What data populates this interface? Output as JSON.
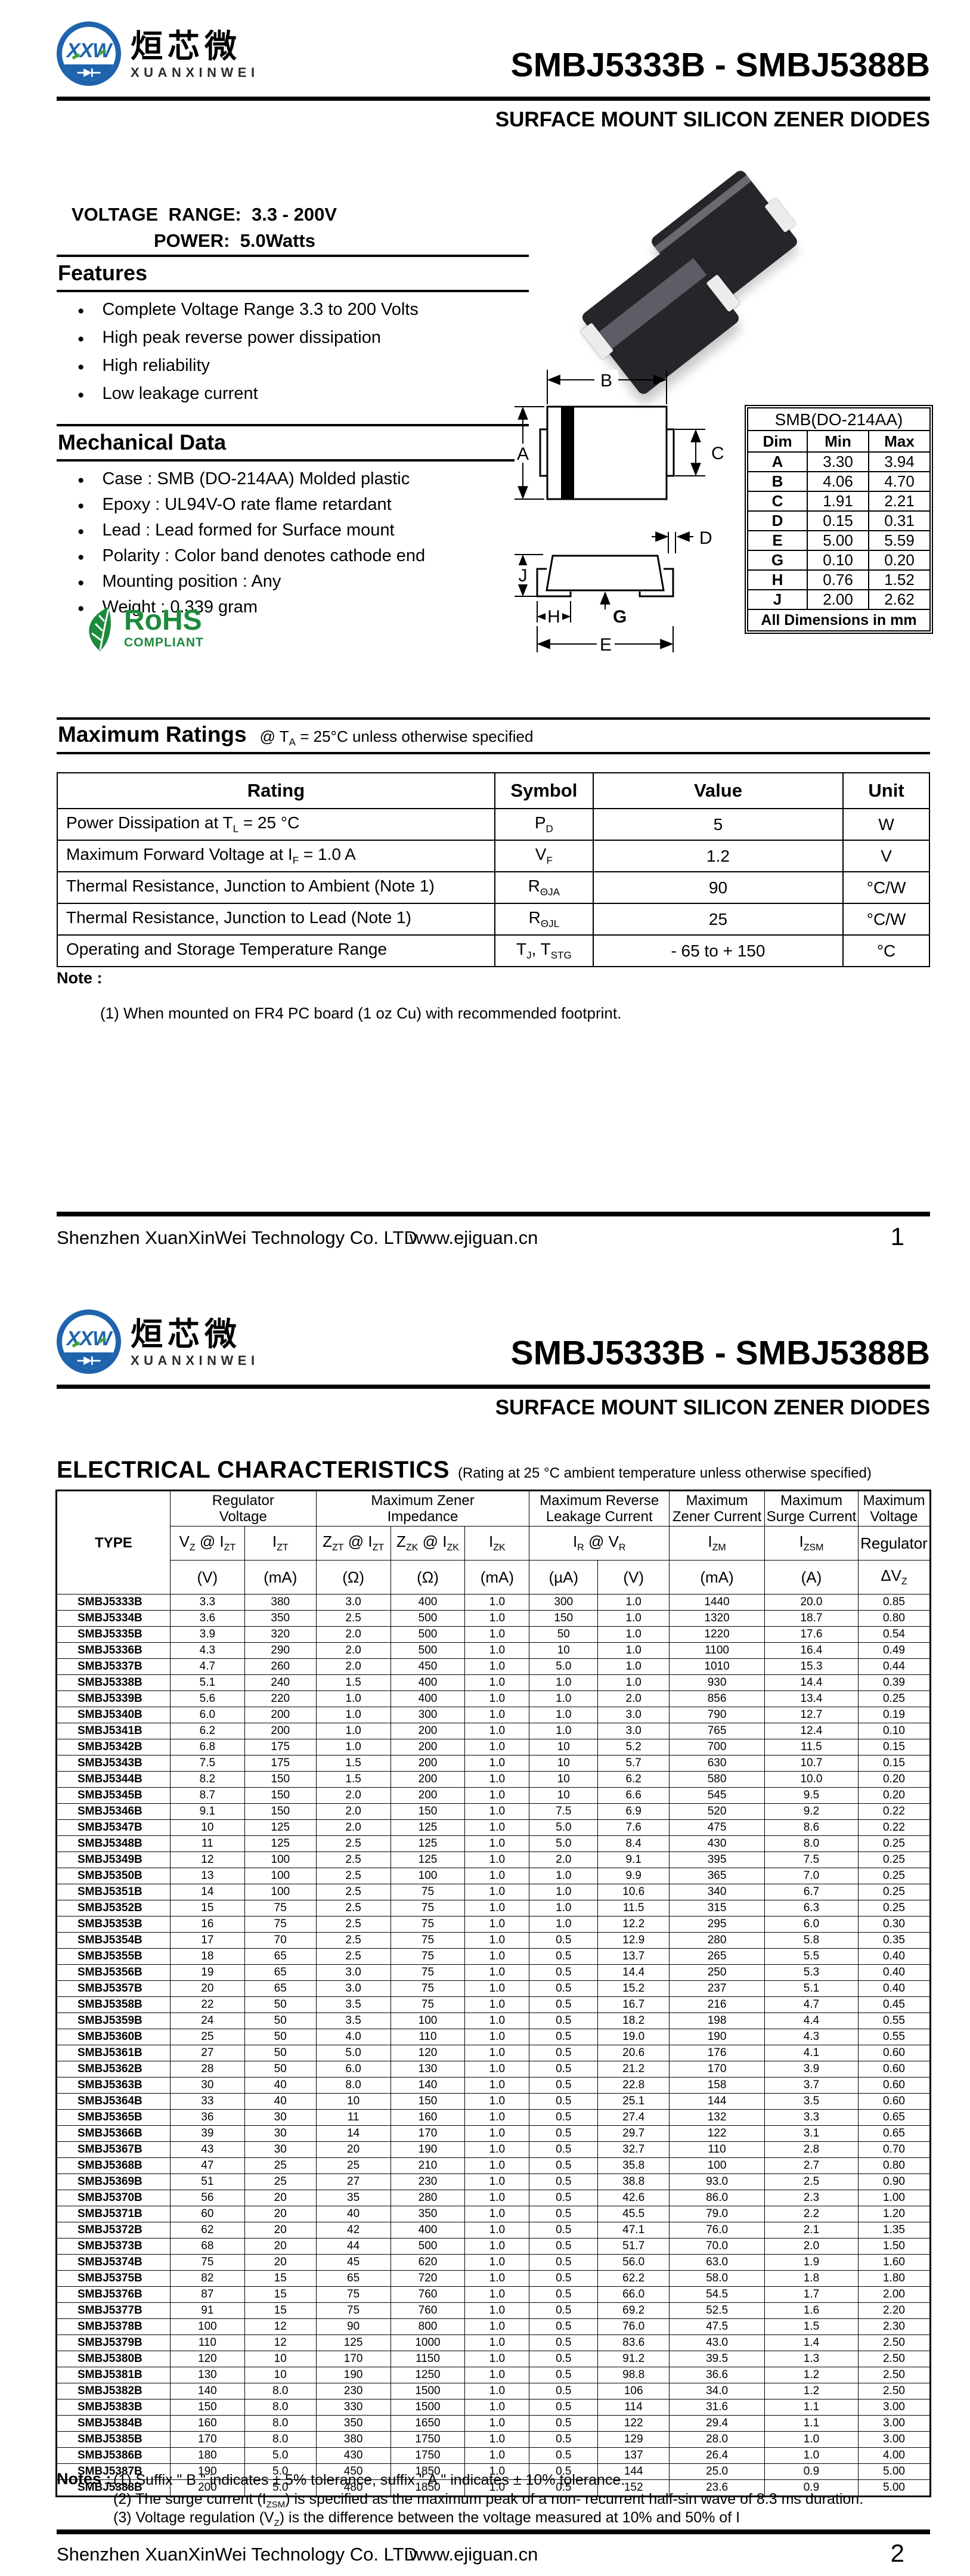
{
  "colors": {
    "accent_blue": "#1f63ad",
    "rohs_green": "#1d8a3c",
    "text": "#000000"
  },
  "brand": {
    "logo_mark": "XXW",
    "logo_cn": "烜芯微",
    "logo_en": "XUANXINWEI",
    "company": "Shenzhen XuanXinWei Technology Co. LTD",
    "website": "www.ejiguan.cn"
  },
  "doc": {
    "title": "SMBJ5333B - SMBJ5388B",
    "subtitle": "SURFACE MOUNT SILICON ZENER DIODES",
    "voltage_range": "VOLTAGE  RANGE:  3.3 - 200V",
    "power": "POWER:  5.0Watts"
  },
  "page1": {
    "features": {
      "heading": "Features",
      "bullet": "●",
      "items": [
        "Complete Voltage Range 3.3 to 200 Volts",
        "High peak reverse power dissipation",
        "High reliability",
        "Low leakage current"
      ]
    },
    "mechanical": {
      "heading": "Mechanical Data",
      "items": [
        "Case : SMB (DO-214AA) Molded plastic",
        "Epoxy : UL94V-O rate flame retardant",
        "Lead : Lead formed for Surface mount",
        "Polarity : Color band denotes cathode end",
        "Mounting position : Any",
        "Weight : 0.339 gram"
      ]
    },
    "rohs": {
      "line1": "RoHS",
      "line2": "COMPLIANT"
    },
    "drawing": {
      "a": "A",
      "b": "B",
      "c": "C",
      "d": "D",
      "e": "E",
      "g": "G",
      "h": "H",
      "j": "J"
    },
    "dim_table": {
      "title": "SMB(DO-214AA)",
      "headers": [
        "Dim",
        "Min",
        "Max"
      ],
      "rows": [
        [
          "A",
          "3.30",
          "3.94"
        ],
        [
          "B",
          "4.06",
          "4.70"
        ],
        [
          "C",
          "1.91",
          "2.21"
        ],
        [
          "D",
          "0.15",
          "0.31"
        ],
        [
          "E",
          "5.00",
          "5.59"
        ],
        [
          "G",
          "0.10",
          "0.20"
        ],
        [
          "H",
          "0.76",
          "1.52"
        ],
        [
          "J",
          "2.00",
          "2.62"
        ]
      ],
      "footer": "All Dimensions in mm"
    },
    "ratings": {
      "heading": "Maximum Ratings",
      "cond_pre": "@ T",
      "cond_sub": "A",
      "cond_post": " = 25°C unless otherwise specified",
      "headers": [
        "Rating",
        "Symbol",
        "Value",
        "Unit"
      ],
      "rows": [
        {
          "pre": "Power Dissipation at T",
          "sub": "L",
          "post": " = 25 °C",
          "sym": [
            "P",
            "D"
          ],
          "value": "5",
          "unit": "W"
        },
        {
          "pre": "Maximum Forward Voltage at I",
          "sub": "F",
          "post": " = 1.0 A",
          "sym": [
            "V",
            "F"
          ],
          "value": "1.2",
          "unit": "V"
        },
        {
          "pre": "Thermal Resistance, Junction to Ambient  (Note 1)",
          "sub": "",
          "post": "",
          "sym": [
            "R",
            "ΘJA"
          ],
          "value": "90",
          "unit": "°C/W"
        },
        {
          "pre": "Thermal Resistance, Junction to Lead  (Note 1)",
          "sub": "",
          "post": "",
          "sym": [
            "R",
            "ΘJL"
          ],
          "value": "25",
          "unit": "°C/W"
        },
        {
          "pre": "Operating and Storage Temperature Range",
          "sub": "",
          "post": "",
          "sym": [
            "T",
            "J",
            ", T",
            "STG"
          ],
          "value": "- 65 to + 150",
          "unit": "°C"
        }
      ],
      "note_label": "Note :",
      "note1": "(1)  When mounted on FR4 PC board (1 oz Cu) with recommended footprint."
    },
    "page_number": "1"
  },
  "page2": {
    "elec": {
      "heading": "ELECTRICAL CHARACTERISTICS",
      "condition": "(Rating at 25 °C ambient temperature unless otherwise specified)",
      "type_header": "TYPE",
      "groups": [
        {
          "l1": "Regulator",
          "l2": "Voltage"
        },
        {
          "l1": "Maximum Zener",
          "l2": "Impedance"
        },
        {
          "l1": "Maximum Reverse",
          "l2": "Leakage Current"
        },
        {
          "l1": "Maximum",
          "l2": "Zener Current"
        },
        {
          "l1": "Maximum",
          "l2": "Surge Current"
        },
        {
          "l1": "Maximum",
          "l2": "Voltage"
        }
      ],
      "sym_row": [
        [
          "V",
          "Z",
          " @ I",
          "ZT"
        ],
        [
          "I",
          "ZT"
        ],
        [
          "Z",
          "ZT",
          " @ I",
          "ZT"
        ],
        [
          "Z",
          "ZK",
          " @ I",
          "ZK"
        ],
        [
          "I",
          "ZK"
        ],
        [
          "I",
          "R",
          "   @   V",
          "R"
        ],
        [
          "I",
          "ZM"
        ],
        [
          "I",
          "ZSM"
        ],
        [
          "Regulator"
        ]
      ],
      "unit_row": [
        "(V)",
        "(mA)",
        "(Ω)",
        "(Ω)",
        "(mA)",
        "(µA)",
        "(V)",
        "(mA)",
        "(A)"
      ],
      "dv_label": [
        "ΔV",
        "Z"
      ],
      "rows": [
        [
          "SMBJ5333B",
          "3.3",
          "380",
          "3.0",
          "400",
          "1.0",
          "300",
          "1.0",
          "1440",
          "20.0",
          "0.85"
        ],
        [
          "SMBJ5334B",
          "3.6",
          "350",
          "2.5",
          "500",
          "1.0",
          "150",
          "1.0",
          "1320",
          "18.7",
          "0.80"
        ],
        [
          "SMBJ5335B",
          "3.9",
          "320",
          "2.0",
          "500",
          "1.0",
          "50",
          "1.0",
          "1220",
          "17.6",
          "0.54"
        ],
        [
          "SMBJ5336B",
          "4.3",
          "290",
          "2.0",
          "500",
          "1.0",
          "10",
          "1.0",
          "1100",
          "16.4",
          "0.49"
        ],
        [
          "SMBJ5337B",
          "4.7",
          "260",
          "2.0",
          "450",
          "1.0",
          "5.0",
          "1.0",
          "1010",
          "15.3",
          "0.44"
        ],
        [
          "SMBJ5338B",
          "5.1",
          "240",
          "1.5",
          "400",
          "1.0",
          "1.0",
          "1.0",
          "930",
          "14.4",
          "0.39"
        ],
        [
          "SMBJ5339B",
          "5.6",
          "220",
          "1.0",
          "400",
          "1.0",
          "1.0",
          "2.0",
          "856",
          "13.4",
          "0.25"
        ],
        [
          "SMBJ5340B",
          "6.0",
          "200",
          "1.0",
          "300",
          "1.0",
          "1.0",
          "3.0",
          "790",
          "12.7",
          "0.19"
        ],
        [
          "SMBJ5341B",
          "6.2",
          "200",
          "1.0",
          "200",
          "1.0",
          "1.0",
          "3.0",
          "765",
          "12.4",
          "0.10"
        ],
        [
          "SMBJ5342B",
          "6.8",
          "175",
          "1.0",
          "200",
          "1.0",
          "10",
          "5.2",
          "700",
          "11.5",
          "0.15"
        ],
        [
          "SMBJ5343B",
          "7.5",
          "175",
          "1.5",
          "200",
          "1.0",
          "10",
          "5.7",
          "630",
          "10.7",
          "0.15"
        ],
        [
          "SMBJ5344B",
          "8.2",
          "150",
          "1.5",
          "200",
          "1.0",
          "10",
          "6.2",
          "580",
          "10.0",
          "0.20"
        ],
        [
          "SMBJ5345B",
          "8.7",
          "150",
          "2.0",
          "200",
          "1.0",
          "10",
          "6.6",
          "545",
          "9.5",
          "0.20"
        ],
        [
          "SMBJ5346B",
          "9.1",
          "150",
          "2.0",
          "150",
          "1.0",
          "7.5",
          "6.9",
          "520",
          "9.2",
          "0.22"
        ],
        [
          "SMBJ5347B",
          "10",
          "125",
          "2.0",
          "125",
          "1.0",
          "5.0",
          "7.6",
          "475",
          "8.6",
          "0.22"
        ],
        [
          "SMBJ5348B",
          "11",
          "125",
          "2.5",
          "125",
          "1.0",
          "5.0",
          "8.4",
          "430",
          "8.0",
          "0.25"
        ],
        [
          "SMBJ5349B",
          "12",
          "100",
          "2.5",
          "125",
          "1.0",
          "2.0",
          "9.1",
          "395",
          "7.5",
          "0.25"
        ],
        [
          "SMBJ5350B",
          "13",
          "100",
          "2.5",
          "100",
          "1.0",
          "1.0",
          "9.9",
          "365",
          "7.0",
          "0.25"
        ],
        [
          "SMBJ5351B",
          "14",
          "100",
          "2.5",
          "75",
          "1.0",
          "1.0",
          "10.6",
          "340",
          "6.7",
          "0.25"
        ],
        [
          "SMBJ5352B",
          "15",
          "75",
          "2.5",
          "75",
          "1.0",
          "1.0",
          "11.5",
          "315",
          "6.3",
          "0.25"
        ],
        [
          "SMBJ5353B",
          "16",
          "75",
          "2.5",
          "75",
          "1.0",
          "1.0",
          "12.2",
          "295",
          "6.0",
          "0.30"
        ],
        [
          "SMBJ5354B",
          "17",
          "70",
          "2.5",
          "75",
          "1.0",
          "0.5",
          "12.9",
          "280",
          "5.8",
          "0.35"
        ],
        [
          "SMBJ5355B",
          "18",
          "65",
          "2.5",
          "75",
          "1.0",
          "0.5",
          "13.7",
          "265",
          "5.5",
          "0.40"
        ],
        [
          "SMBJ5356B",
          "19",
          "65",
          "3.0",
          "75",
          "1.0",
          "0.5",
          "14.4",
          "250",
          "5.3",
          "0.40"
        ],
        [
          "SMBJ5357B",
          "20",
          "65",
          "3.0",
          "75",
          "1.0",
          "0.5",
          "15.2",
          "237",
          "5.1",
          "0.40"
        ],
        [
          "SMBJ5358B",
          "22",
          "50",
          "3.5",
          "75",
          "1.0",
          "0.5",
          "16.7",
          "216",
          "4.7",
          "0.45"
        ],
        [
          "SMBJ5359B",
          "24",
          "50",
          "3.5",
          "100",
          "1.0",
          "0.5",
          "18.2",
          "198",
          "4.4",
          "0.55"
        ],
        [
          "SMBJ5360B",
          "25",
          "50",
          "4.0",
          "110",
          "1.0",
          "0.5",
          "19.0",
          "190",
          "4.3",
          "0.55"
        ],
        [
          "SMBJ5361B",
          "27",
          "50",
          "5.0",
          "120",
          "1.0",
          "0.5",
          "20.6",
          "176",
          "4.1",
          "0.60"
        ],
        [
          "SMBJ5362B",
          "28",
          "50",
          "6.0",
          "130",
          "1.0",
          "0.5",
          "21.2",
          "170",
          "3.9",
          "0.60"
        ],
        [
          "SMBJ5363B",
          "30",
          "40",
          "8.0",
          "140",
          "1.0",
          "0.5",
          "22.8",
          "158",
          "3.7",
          "0.60"
        ],
        [
          "SMBJ5364B",
          "33",
          "40",
          "10",
          "150",
          "1.0",
          "0.5",
          "25.1",
          "144",
          "3.5",
          "0.60"
        ],
        [
          "SMBJ5365B",
          "36",
          "30",
          "11",
          "160",
          "1.0",
          "0.5",
          "27.4",
          "132",
          "3.3",
          "0.65"
        ],
        [
          "SMBJ5366B",
          "39",
          "30",
          "14",
          "170",
          "1.0",
          "0.5",
          "29.7",
          "122",
          "3.1",
          "0.65"
        ],
        [
          "SMBJ5367B",
          "43",
          "30",
          "20",
          "190",
          "1.0",
          "0.5",
          "32.7",
          "110",
          "2.8",
          "0.70"
        ],
        [
          "SMBJ5368B",
          "47",
          "25",
          "25",
          "210",
          "1.0",
          "0.5",
          "35.8",
          "100",
          "2.7",
          "0.80"
        ],
        [
          "SMBJ5369B",
          "51",
          "25",
          "27",
          "230",
          "1.0",
          "0.5",
          "38.8",
          "93.0",
          "2.5",
          "0.90"
        ],
        [
          "SMBJ5370B",
          "56",
          "20",
          "35",
          "280",
          "1.0",
          "0.5",
          "42.6",
          "86.0",
          "2.3",
          "1.00"
        ],
        [
          "SMBJ5371B",
          "60",
          "20",
          "40",
          "350",
          "1.0",
          "0.5",
          "45.5",
          "79.0",
          "2.2",
          "1.20"
        ],
        [
          "SMBJ5372B",
          "62",
          "20",
          "42",
          "400",
          "1.0",
          "0.5",
          "47.1",
          "76.0",
          "2.1",
          "1.35"
        ],
        [
          "SMBJ5373B",
          "68",
          "20",
          "44",
          "500",
          "1.0",
          "0.5",
          "51.7",
          "70.0",
          "2.0",
          "1.50"
        ],
        [
          "SMBJ5374B",
          "75",
          "20",
          "45",
          "620",
          "1.0",
          "0.5",
          "56.0",
          "63.0",
          "1.9",
          "1.60"
        ],
        [
          "SMBJ5375B",
          "82",
          "15",
          "65",
          "720",
          "1.0",
          "0.5",
          "62.2",
          "58.0",
          "1.8",
          "1.80"
        ],
        [
          "SMBJ5376B",
          "87",
          "15",
          "75",
          "760",
          "1.0",
          "0.5",
          "66.0",
          "54.5",
          "1.7",
          "2.00"
        ],
        [
          "SMBJ5377B",
          "91",
          "15",
          "75",
          "760",
          "1.0",
          "0.5",
          "69.2",
          "52.5",
          "1.6",
          "2.20"
        ],
        [
          "SMBJ5378B",
          "100",
          "12",
          "90",
          "800",
          "1.0",
          "0.5",
          "76.0",
          "47.5",
          "1.5",
          "2.30"
        ],
        [
          "SMBJ5379B",
          "110",
          "12",
          "125",
          "1000",
          "1.0",
          "0.5",
          "83.6",
          "43.0",
          "1.4",
          "2.50"
        ],
        [
          "SMBJ5380B",
          "120",
          "10",
          "170",
          "1150",
          "1.0",
          "0.5",
          "91.2",
          "39.5",
          "1.3",
          "2.50"
        ],
        [
          "SMBJ5381B",
          "130",
          "10",
          "190",
          "1250",
          "1.0",
          "0.5",
          "98.8",
          "36.6",
          "1.2",
          "2.50"
        ],
        [
          "SMBJ5382B",
          "140",
          "8.0",
          "230",
          "1500",
          "1.0",
          "0.5",
          "106",
          "34.0",
          "1.2",
          "2.50"
        ],
        [
          "SMBJ5383B",
          "150",
          "8.0",
          "330",
          "1500",
          "1.0",
          "0.5",
          "114",
          "31.6",
          "1.1",
          "3.00"
        ],
        [
          "SMBJ5384B",
          "160",
          "8.0",
          "350",
          "1650",
          "1.0",
          "0.5",
          "122",
          "29.4",
          "1.1",
          "3.00"
        ],
        [
          "SMBJ5385B",
          "170",
          "8.0",
          "380",
          "1750",
          "1.0",
          "0.5",
          "129",
          "28.0",
          "1.0",
          "3.00"
        ],
        [
          "SMBJ5386B",
          "180",
          "5.0",
          "430",
          "1750",
          "1.0",
          "0.5",
          "137",
          "26.4",
          "1.0",
          "4.00"
        ],
        [
          "SMBJ5387B",
          "190",
          "5.0",
          "450",
          "1850",
          "1.0",
          "0.5",
          "144",
          "25.0",
          "0.9",
          "5.00"
        ],
        [
          "SMBJ5388B",
          "200",
          "5.0",
          "480",
          "1850",
          "1.0",
          "0.5",
          "152",
          "23.6",
          "0.9",
          "5.00"
        ]
      ]
    },
    "notes": {
      "label": "Notes :",
      "n1": "(1)   Suffix \" B \" indicates ± 5% tolerance, suffix \" A \" indicates ± 10% tolerance.",
      "n2_pre": "(2) The surge current (I",
      "n2_sub": "ZSM",
      "n2_post": ") is specified as the maximum peak of a non- recurrent half-sin wave of 8.3 ms duration.",
      "n3_pre": "(3) Voltage regulation (V",
      "n3_sub": "Z",
      "n3_post": ") is the difference between the voltage measured at 10% and 50% of I"
    },
    "page_number": "2"
  }
}
